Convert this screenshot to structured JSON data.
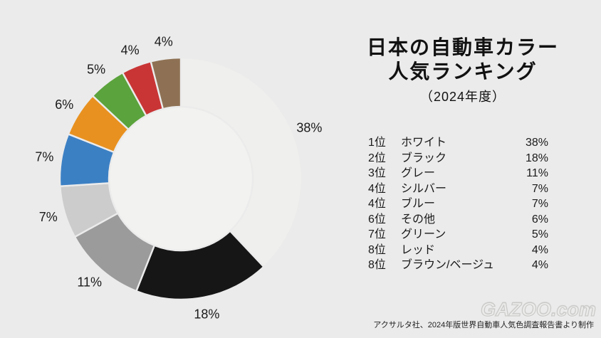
{
  "page": {
    "background": "#ebebeb"
  },
  "title": {
    "line1": "日本の自動車カラー",
    "line2": "人気ランキング",
    "subtitle": "（2024年度）"
  },
  "chart_data": {
    "type": "pie",
    "subtype": "donut",
    "title": "日本の自動車カラー人気ランキング（2024年度）",
    "direction": "clockwise",
    "start_angle_deg_from_top": 0,
    "unit": "%",
    "hole_color": "#f2f2f0",
    "segments": [
      {
        "rank": "1位",
        "label": "ホワイト",
        "value": 38,
        "color": "#efefed"
      },
      {
        "rank": "2位",
        "label": "ブラック",
        "value": 18,
        "color": "#161616"
      },
      {
        "rank": "3位",
        "label": "グレー",
        "value": 11,
        "color": "#9b9b9b"
      },
      {
        "rank": "4位",
        "label": "シルバー",
        "value": 7,
        "color": "#cccccc"
      },
      {
        "rank": "4位",
        "label": "ブルー",
        "value": 7,
        "color": "#3c80c4"
      },
      {
        "rank": "6位",
        "label": "その他",
        "value": 6,
        "color": "#e89120"
      },
      {
        "rank": "7位",
        "label": "グリーン",
        "value": 5,
        "color": "#5ba33c"
      },
      {
        "rank": "8位",
        "label": "レッド",
        "value": 4,
        "color": "#c93535"
      },
      {
        "rank": "8位",
        "label": "ブラウン/ベージュ",
        "value": 4,
        "color": "#8e7154"
      }
    ],
    "point_labels": [
      "38%",
      "18%",
      "11%",
      "7%",
      "7%",
      "6%",
      "5%",
      "4%",
      "4%"
    ]
  },
  "ranking": {
    "rows": [
      {
        "rank": "1位",
        "name": "ホワイト",
        "value": "38%"
      },
      {
        "rank": "2位",
        "name": "ブラック",
        "value": "18%"
      },
      {
        "rank": "3位",
        "name": "グレー",
        "value": "11%"
      },
      {
        "rank": "4位",
        "name": "シルバー",
        "value": "7%"
      },
      {
        "rank": "4位",
        "name": "ブルー",
        "value": "7%"
      },
      {
        "rank": "6位",
        "name": "その他",
        "value": "6%"
      },
      {
        "rank": "7位",
        "name": "グリーン",
        "value": "5%"
      },
      {
        "rank": "8位",
        "name": "レッド",
        "value": "4%"
      },
      {
        "rank": "8位",
        "name": "ブラウン/ベージュ",
        "value": "4%"
      }
    ]
  },
  "watermark": "GAZOO.com",
  "footer": "アクサルタ社、2024年版世界自動車人気色調査報告書より制作"
}
